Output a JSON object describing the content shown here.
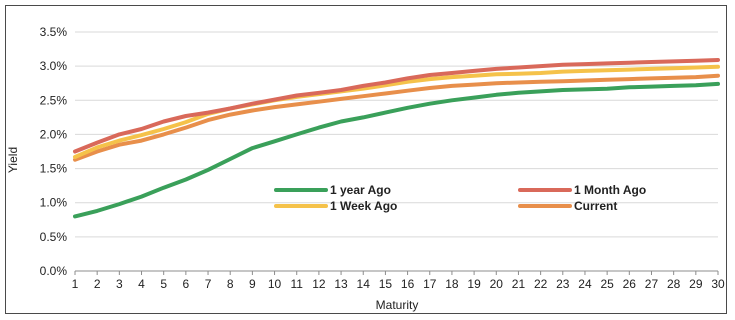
{
  "chart_data": {
    "type": "line",
    "title": "",
    "xlabel": "Maturity",
    "ylabel": "Yield",
    "x": [
      1,
      2,
      3,
      4,
      5,
      6,
      7,
      8,
      9,
      10,
      11,
      12,
      13,
      14,
      15,
      16,
      17,
      18,
      19,
      20,
      21,
      22,
      23,
      24,
      25,
      26,
      27,
      28,
      29,
      30
    ],
    "xlim": [
      1,
      30
    ],
    "ylim": [
      0,
      3.5
    ],
    "y_ticks": [
      "0.0%",
      "0.5%",
      "1.0%",
      "1.5%",
      "2.0%",
      "2.5%",
      "3.0%",
      "3.5%"
    ],
    "y_tick_values": [
      0,
      0.5,
      1.0,
      1.5,
      2.0,
      2.5,
      3.0,
      3.5
    ],
    "grid": "horizontal",
    "legend_position": "center",
    "series": [
      {
        "name": "1 year Ago",
        "color": "#3aa05a",
        "values": [
          0.8,
          0.88,
          0.98,
          1.09,
          1.22,
          1.34,
          1.48,
          1.64,
          1.8,
          1.9,
          2.0,
          2.1,
          2.19,
          2.25,
          2.32,
          2.39,
          2.45,
          2.5,
          2.54,
          2.58,
          2.61,
          2.63,
          2.65,
          2.66,
          2.67,
          2.69,
          2.7,
          2.71,
          2.72,
          2.74
        ]
      },
      {
        "name": "1 Month Ago",
        "color": "#d9695a",
        "values": [
          1.75,
          1.88,
          2.0,
          2.08,
          2.19,
          2.27,
          2.32,
          2.38,
          2.45,
          2.51,
          2.57,
          2.61,
          2.65,
          2.71,
          2.76,
          2.82,
          2.87,
          2.9,
          2.93,
          2.96,
          2.98,
          3.0,
          3.02,
          3.03,
          3.04,
          3.05,
          3.06,
          3.07,
          3.08,
          3.09
        ]
      },
      {
        "name": "1 Week Ago",
        "color": "#f5c24a",
        "values": [
          1.67,
          1.81,
          1.91,
          1.99,
          2.08,
          2.18,
          2.3,
          2.38,
          2.44,
          2.5,
          2.55,
          2.59,
          2.63,
          2.67,
          2.72,
          2.77,
          2.81,
          2.84,
          2.86,
          2.88,
          2.89,
          2.9,
          2.92,
          2.93,
          2.94,
          2.95,
          2.96,
          2.97,
          2.98,
          2.99
        ]
      },
      {
        "name": "Current",
        "color": "#e88f4b",
        "values": [
          1.63,
          1.75,
          1.85,
          1.91,
          2.0,
          2.1,
          2.21,
          2.29,
          2.35,
          2.4,
          2.44,
          2.48,
          2.52,
          2.56,
          2.6,
          2.64,
          2.68,
          2.71,
          2.73,
          2.75,
          2.76,
          2.77,
          2.78,
          2.79,
          2.8,
          2.81,
          2.82,
          2.83,
          2.84,
          2.86
        ]
      }
    ]
  }
}
